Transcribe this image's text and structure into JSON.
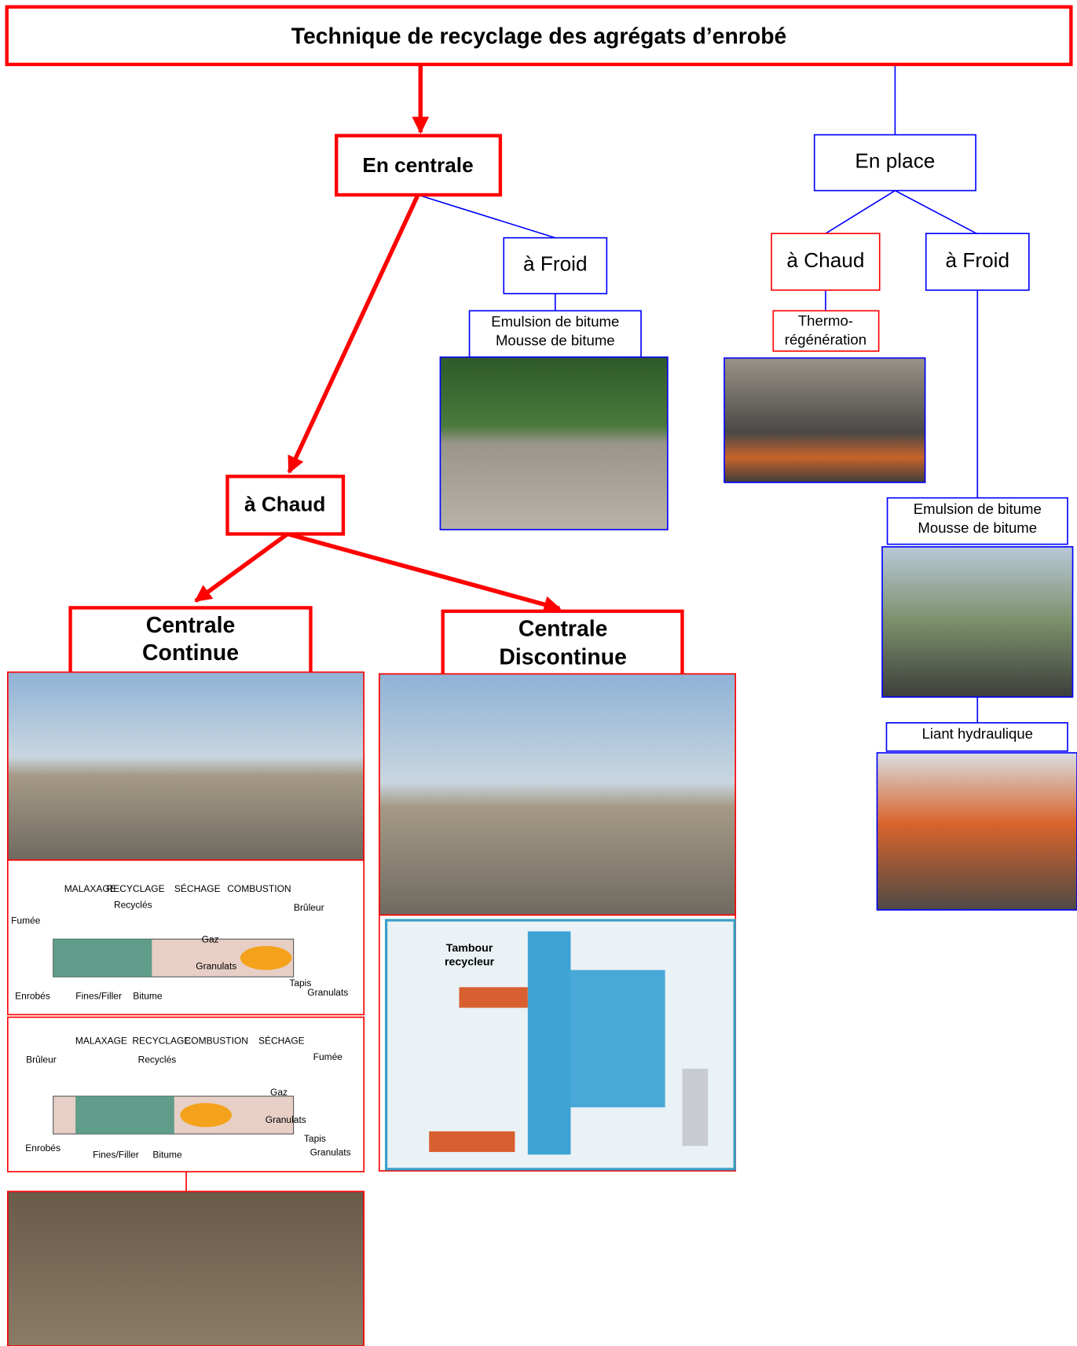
{
  "title": "Technique de recyclage des agrégats d’enrobé",
  "nodes": {
    "en_centrale": "En centrale",
    "en_place": "En place",
    "centrale_froid": "à Froid",
    "centrale_chaud": "à Chaud",
    "place_chaud": "à Chaud",
    "place_froid": "à Froid",
    "centrale_continue": [
      "Centrale",
      "Continue"
    ],
    "centrale_discontinue": [
      "Centrale",
      "Discontinue"
    ]
  },
  "labels": {
    "centrale_froid_liants": [
      "Emulsion de bitume",
      "Mousse de bitume"
    ],
    "thermo": [
      "Thermo-",
      "régénération"
    ],
    "place_froid_liants": [
      "Emulsion de bitume",
      "Mousse de bitume"
    ],
    "liant_hydraulique": "Liant hydraulique"
  },
  "schematic_1": {
    "zones": [
      "MALAXAGE",
      "RECYCLAGE",
      "SÉCHAGE",
      "COMBUSTION"
    ],
    "items": [
      "Fumée",
      "Recyclés",
      "Brûleur",
      "Gaz",
      "Granulats",
      "Enrobés",
      "Fines/Filler",
      "Bitume",
      "Tapis",
      "Granulats"
    ]
  },
  "schematic_2": {
    "zones": [
      "MALAXAGE",
      "RECYCLAGE",
      "COMBUSTION",
      "SÉCHAGE"
    ],
    "items": [
      "Brûleur",
      "Recyclés",
      "Fumée",
      "Gaz",
      "Granulats",
      "Enrobés",
      "Fines/Filler",
      "Bitume",
      "Tapis",
      "Granulats"
    ]
  },
  "schematic_3": {
    "title": [
      "Tambour",
      "recycleur"
    ]
  }
}
